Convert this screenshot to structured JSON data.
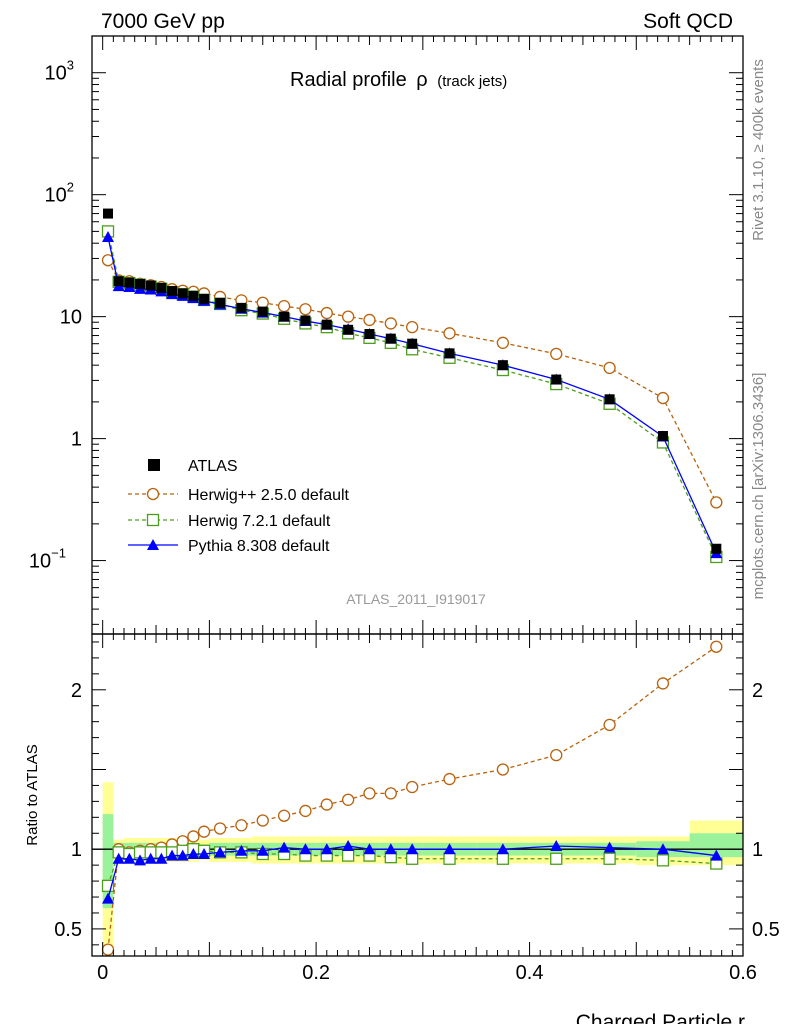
{
  "header": {
    "left": "7000 GeV pp",
    "right": "Soft QCD"
  },
  "side_text": {
    "top": "Rivet 3.1.10, ≥ 400k events",
    "bottom": "mcplots.cern.ch [arXiv:1306.3436]"
  },
  "chart_data": [
    {
      "type": "scatter",
      "panel": "main",
      "title": "Radial profile",
      "title_symbol": "ρ",
      "title_suffix": "(track jets)",
      "analysis_id": "ATLAS_2011_I919017",
      "yscale": "log",
      "ylim": [
        0.025,
        2000
      ],
      "xlim": [
        -0.01,
        0.6
      ],
      "y_ticks": [
        {
          "value": 1000,
          "label": "10",
          "exp": "3"
        },
        {
          "value": 100,
          "label": "10",
          "exp": "2"
        },
        {
          "value": 10,
          "label": "10",
          "exp": ""
        },
        {
          "value": 1,
          "label": "1",
          "exp": ""
        },
        {
          "value": 0.1,
          "label": "10",
          "exp": "−1"
        }
      ],
      "x": [
        0.005,
        0.015,
        0.025,
        0.035,
        0.045,
        0.055,
        0.065,
        0.075,
        0.085,
        0.095,
        0.11,
        0.13,
        0.15,
        0.17,
        0.19,
        0.21,
        0.23,
        0.25,
        0.27,
        0.29,
        0.325,
        0.375,
        0.425,
        0.475,
        0.525,
        0.575
      ],
      "series": [
        {
          "name": "ATLAS",
          "style": "data",
          "color": "#000000",
          "values": [
            70,
            19.5,
            19,
            18.5,
            18,
            17.2,
            16.2,
            15.5,
            14.8,
            14.0,
            13.0,
            11.8,
            11.0,
            10.0,
            9.3,
            8.6,
            7.8,
            7.2,
            6.6,
            6.0,
            5.0,
            4.0,
            3.05,
            2.1,
            1.05,
            0.125
          ]
        },
        {
          "name": "Herwig++ 2.5.0 default",
          "style": "circle-dashed",
          "color": "#b8620d",
          "values": [
            29,
            19.8,
            19.5,
            18.6,
            18.1,
            17.5,
            16.8,
            16.3,
            16.0,
            15.5,
            14.5,
            13.6,
            13.0,
            12.2,
            11.5,
            10.7,
            10.0,
            9.4,
            8.8,
            8.2,
            7.3,
            6.1,
            4.95,
            3.8,
            2.15,
            0.3
          ]
        },
        {
          "name": "Herwig 7.2.1 default",
          "style": "square-dashed",
          "color": "#4d9e1d",
          "values": [
            50,
            19.3,
            18.8,
            18.3,
            17.6,
            16.9,
            15.9,
            15.3,
            14.6,
            13.7,
            12.7,
            11.3,
            10.6,
            9.6,
            8.8,
            8.2,
            7.3,
            6.7,
            6.1,
            5.4,
            4.6,
            3.65,
            2.8,
            1.93,
            0.93,
            0.107
          ]
        },
        {
          "name": "Pythia 8.308 default",
          "style": "triangle-solid",
          "color": "#0000ff",
          "values": [
            45,
            17.8,
            17.5,
            16.9,
            16.7,
            16.1,
            15.3,
            14.8,
            14.2,
            13.5,
            12.6,
            11.6,
            10.8,
            10.0,
            9.2,
            8.6,
            7.9,
            7.2,
            6.6,
            6.0,
            5.0,
            4.0,
            3.05,
            2.1,
            1.04,
            0.115
          ]
        }
      ]
    },
    {
      "type": "scatter",
      "panel": "ratio",
      "ylabel": "Ratio to ATLAS",
      "xlabel": "Charged Particle r",
      "ylim": [
        0.33,
        2.35
      ],
      "xlim": [
        -0.01,
        0.6
      ],
      "y_ticks": [
        {
          "value": 2,
          "label": "2"
        },
        {
          "value": 1,
          "label": "1"
        },
        {
          "value": 0.5,
          "label": "0.5"
        }
      ],
      "x_ticks": [
        {
          "value": 0,
          "label": "0"
        },
        {
          "value": 0.2,
          "label": "0.2"
        },
        {
          "value": 0.4,
          "label": "0.4"
        },
        {
          "value": 0.6,
          "label": "0.6"
        }
      ],
      "bands": {
        "edges": [
          0,
          0.01,
          0.02,
          0.03,
          0.04,
          0.05,
          0.06,
          0.07,
          0.08,
          0.09,
          0.1,
          0.12,
          0.14,
          0.16,
          0.18,
          0.2,
          0.22,
          0.24,
          0.26,
          0.28,
          0.3,
          0.35,
          0.4,
          0.45,
          0.5,
          0.55,
          0.6
        ],
        "yellow_lo": [
          0.38,
          0.93,
          0.93,
          0.92,
          0.92,
          0.92,
          0.92,
          0.92,
          0.92,
          0.93,
          0.92,
          0.92,
          0.91,
          0.91,
          0.91,
          0.91,
          0.91,
          0.91,
          0.91,
          0.91,
          0.91,
          0.91,
          0.91,
          0.91,
          0.9,
          0.9
        ],
        "yellow_hi": [
          1.42,
          1.06,
          1.07,
          1.07,
          1.07,
          1.07,
          1.07,
          1.07,
          1.07,
          1.06,
          1.07,
          1.07,
          1.08,
          1.08,
          1.08,
          1.08,
          1.08,
          1.08,
          1.08,
          1.08,
          1.08,
          1.08,
          1.08,
          1.08,
          1.08,
          1.18
        ],
        "green_lo": [
          0.63,
          0.96,
          0.96,
          0.96,
          0.96,
          0.96,
          0.96,
          0.96,
          0.96,
          0.97,
          0.96,
          0.96,
          0.96,
          0.96,
          0.96,
          0.96,
          0.96,
          0.96,
          0.96,
          0.96,
          0.96,
          0.96,
          0.96,
          0.96,
          0.95,
          0.95
        ],
        "green_hi": [
          1.22,
          1.04,
          1.04,
          1.04,
          1.04,
          1.04,
          1.04,
          1.04,
          1.04,
          1.03,
          1.04,
          1.04,
          1.04,
          1.04,
          1.04,
          1.04,
          1.04,
          1.04,
          1.04,
          1.04,
          1.04,
          1.04,
          1.04,
          1.04,
          1.05,
          1.1
        ]
      },
      "series": [
        {
          "name": "Herwig++ 2.5.0 default",
          "color": "#b8620d",
          "values": [
            0.37,
            1.0,
            0.98,
            0.99,
            1.0,
            1.01,
            1.03,
            1.05,
            1.08,
            1.11,
            1.13,
            1.15,
            1.18,
            1.21,
            1.24,
            1.28,
            1.31,
            1.35,
            1.35,
            1.39,
            1.44,
            1.5,
            1.59,
            1.78,
            2.04,
            2.27
          ]
        },
        {
          "name": "Herwig 7.2.1 default",
          "color": "#4d9e1d",
          "values": [
            0.77,
            0.98,
            0.97,
            0.98,
            0.98,
            0.98,
            0.98,
            0.99,
            1.0,
            0.99,
            0.98,
            0.98,
            0.97,
            0.97,
            0.96,
            0.96,
            0.96,
            0.96,
            0.95,
            0.94,
            0.94,
            0.94,
            0.94,
            0.94,
            0.93,
            0.91
          ]
        },
        {
          "name": "Pythia 8.308 default",
          "color": "#0000ff",
          "values": [
            0.69,
            0.94,
            0.94,
            0.93,
            0.94,
            0.94,
            0.96,
            0.96,
            0.97,
            0.97,
            0.98,
            0.99,
            0.99,
            1.01,
            1.0,
            1.0,
            1.02,
            1.0,
            1.0,
            1.0,
            1.0,
            1.0,
            1.02,
            1.01,
            1.0,
            0.96
          ]
        }
      ]
    }
  ]
}
